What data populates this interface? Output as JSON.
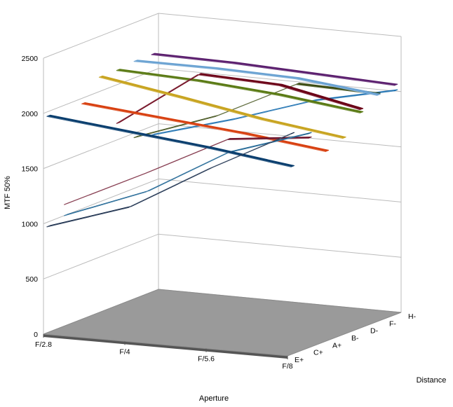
{
  "chart_data": {
    "type": "3d-line-ribbon",
    "title": "",
    "ylabel": "MTF 50%",
    "xlabel": "Aperture",
    "zlabel": "Distance",
    "ylim": [
      0,
      2500
    ],
    "yticks": [
      0,
      500,
      1000,
      1500,
      2000,
      2500
    ],
    "x": [
      "F/2.8",
      "F/4",
      "F/5.6",
      "F/8"
    ],
    "depth_categories": [
      "E+",
      "C+",
      "A+",
      "B-",
      "D-",
      "F-",
      "H-"
    ],
    "grid": true,
    "colors": {
      "floor": "#9a9a9a",
      "floor_edge": "#555555",
      "grid": "#bbbbbb"
    },
    "series": [
      {
        "depth": "H-",
        "color": "#1a6fb0",
        "values": [
          1420,
          1630,
          1870,
          2030
        ]
      },
      {
        "depth": "H-",
        "color": "#5b1f6e",
        "values": [
          2150,
          2140,
          2110,
          2080
        ]
      },
      {
        "depth": "F-",
        "color": "#3a4a10",
        "values": [
          1460,
          1720,
          2080,
          2060
        ]
      },
      {
        "depth": "F-",
        "color": "#6aa2d2",
        "values": [
          2150,
          2150,
          2130,
          2050
        ]
      },
      {
        "depth": "D-",
        "color": "#5a7a14",
        "values": [
          2130,
          2100,
          2040,
          1950
        ]
      },
      {
        "depth": "D-",
        "color": "#6b0016",
        "values": [
          1650,
          2160,
          2130,
          1980
        ]
      },
      {
        "depth": "B-",
        "color": "#c8a420",
        "values": [
          2130,
          2010,
          1880,
          1780
        ]
      },
      {
        "depth": "A+",
        "color": "#d84010",
        "values": [
          1950,
          1880,
          1810,
          1720
        ]
      },
      {
        "depth": "C+",
        "color": "#6b1028",
        "values": [
          1100,
          1450,
          1820,
          1900
        ]
      },
      {
        "depth": "C+",
        "color": "#0e5a8c",
        "values": [
          1000,
          1280,
          1700,
          1940
        ]
      },
      {
        "depth": "E+",
        "color": "#0a3e6e",
        "values": [
          1960,
          1880,
          1800,
          1700
        ]
      },
      {
        "depth": "E+",
        "color": "#0b2040",
        "values": [
          960,
          1200,
          1620,
          2000
        ]
      }
    ]
  }
}
